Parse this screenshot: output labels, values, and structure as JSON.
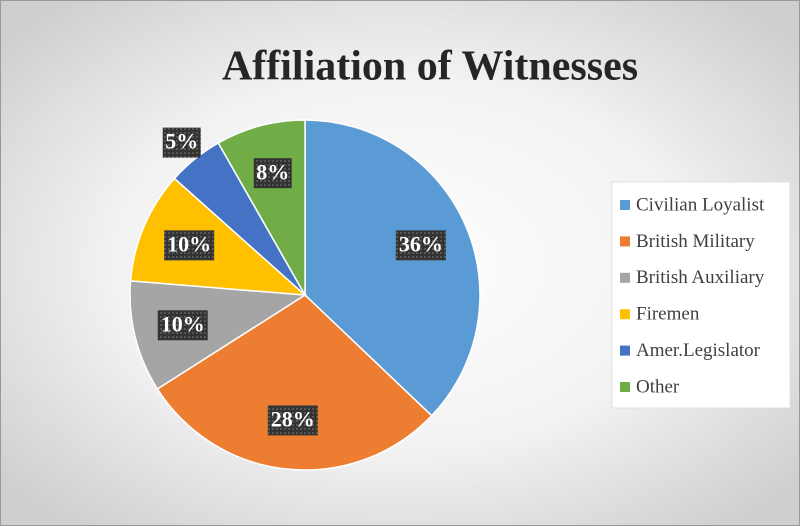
{
  "chart_data": {
    "type": "pie",
    "title": "Affiliation of Witnesses",
    "categories": [
      "Civilian Loyalist",
      "British Military",
      "British Auxiliary",
      "Firemen",
      "Amer.Legislator",
      "Other"
    ],
    "values": [
      36,
      28,
      10,
      10,
      5,
      8
    ],
    "value_labels": [
      "36%",
      "28%",
      "10%",
      "10%",
      "5%",
      "8%"
    ],
    "colors": [
      "#5b9bd5",
      "#ed7d31",
      "#a5a5a5",
      "#ffc000",
      "#4472c4",
      "#70ad47"
    ],
    "legend": "right"
  }
}
